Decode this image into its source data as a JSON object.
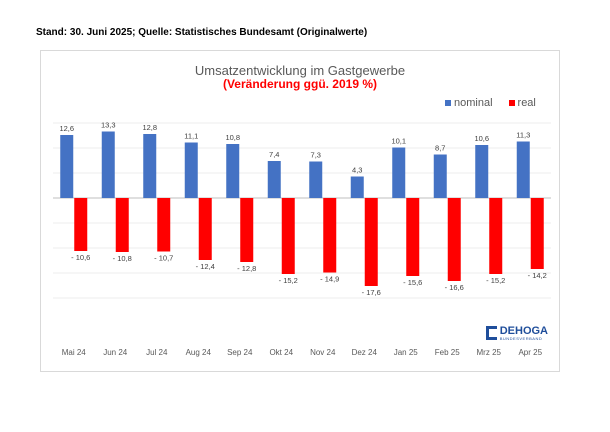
{
  "header": {
    "source_line": "Stand: 30. Juni 2025; Quelle: Statistisches Bundesamt (Originalwerte)"
  },
  "logo": {
    "name": "DEHOGA",
    "sub": "BUNDESVERBAND"
  },
  "chart_data": {
    "type": "bar",
    "title": "Umsatzentwicklung im Gastgewerbe",
    "subtitle": "(Veränderung ggü. 2019 %)",
    "categories": [
      "Mai 24",
      "Jun 24",
      "Jul 24",
      "Aug 24",
      "Sep 24",
      "Okt 24",
      "Nov 24",
      "Dez 24",
      "Jan 25",
      "Feb 25",
      "Mrz 25",
      "Apr 25"
    ],
    "series": [
      {
        "name": "nominal",
        "color": "#4472c4",
        "values": [
          12.6,
          13.3,
          12.8,
          11.1,
          10.8,
          7.4,
          7.3,
          4.3,
          10.1,
          8.7,
          10.6,
          11.3
        ],
        "labels": [
          "12,6",
          "13,3",
          "12,8",
          "11,1",
          "10,8",
          "7,4",
          "7,3",
          "4,3",
          "10,1",
          "8,7",
          "10,6",
          "11,3"
        ]
      },
      {
        "name": "real",
        "color": "#ff0000",
        "values": [
          -10.6,
          -10.8,
          -10.7,
          -12.4,
          -12.8,
          -15.2,
          -14.9,
          -17.6,
          -15.6,
          -16.6,
          -15.2,
          -14.2
        ],
        "labels": [
          "- 10,6",
          "- 10,8",
          "- 10,7",
          "- 12,4",
          "- 12,8",
          "- 15,2",
          "- 14,9",
          "- 17,6",
          "- 15,6",
          "- 16,6",
          "- 15,2",
          "- 14,2"
        ]
      }
    ],
    "legend_position": "top-right",
    "grid": true,
    "ylim": [
      -20,
      16
    ]
  }
}
